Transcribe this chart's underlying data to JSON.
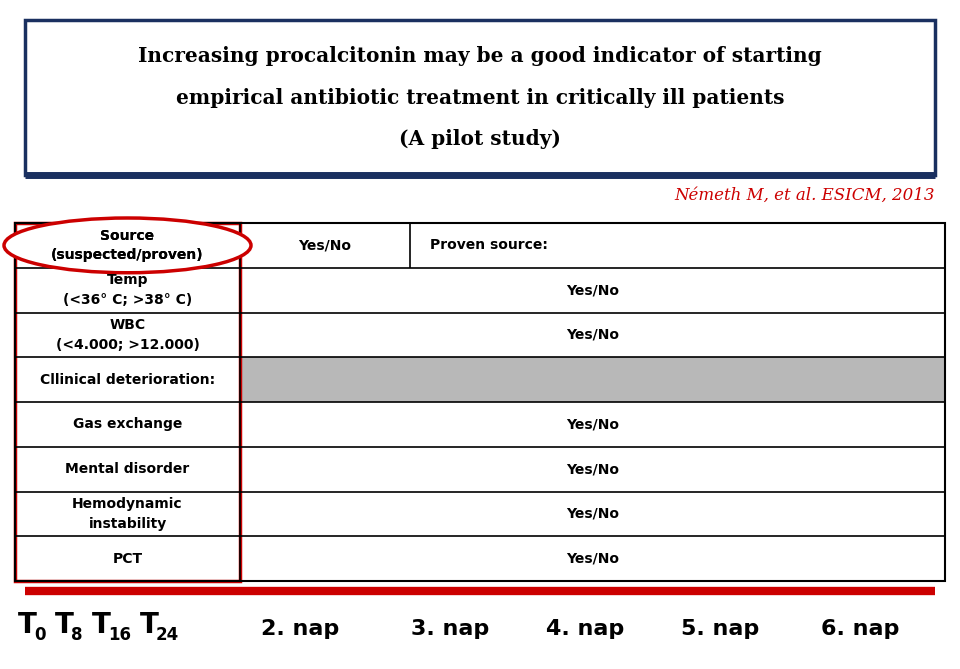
{
  "title_line1": "Increasing procalcitonin may be a good indicator of starting",
  "title_line2": "empirical antibiotic treatment in critically ill patients",
  "title_line3": "(A pilot study)",
  "subtitle": "Németh M, et al. ESICM, 2013",
  "subtitle_color": "#cc0000",
  "dark_blue": "#1a3060",
  "red_color": "#cc0000",
  "gray_row_color": "#b8b8b8",
  "table_rows": [
    {
      "label": "Source\n(suspected/proven)",
      "col2": "Yes/No",
      "col3": "Proven source:",
      "gray": false,
      "ellipse": true,
      "col3_left": true
    },
    {
      "label": "Temp\n(<36° C; >38° C)",
      "col2": "",
      "col3": "Yes/No",
      "gray": false,
      "ellipse": false,
      "col3_left": false
    },
    {
      "label": "WBC\n(<4.000; >12.000)",
      "col2": "",
      "col3": "Yes/No",
      "gray": false,
      "ellipse": false,
      "col3_left": false
    },
    {
      "label": "Cllinical deterioration:",
      "col2": "",
      "col3": "",
      "gray": true,
      "ellipse": false,
      "col3_left": false
    },
    {
      "label": "Gas exchange",
      "col2": "",
      "col3": "Yes/No",
      "gray": false,
      "ellipse": false,
      "col3_left": false
    },
    {
      "label": "Mental disorder",
      "col2": "",
      "col3": "Yes/No",
      "gray": false,
      "ellipse": false,
      "col3_left": false
    },
    {
      "label": "Hemodynamic\ninstability",
      "col2": "",
      "col3": "Yes/No",
      "gray": false,
      "ellipse": false,
      "col3_left": false
    },
    {
      "label": "PCT",
      "col2": "",
      "col3": "Yes/No",
      "gray": false,
      "ellipse": false,
      "col3_left": false
    }
  ],
  "t_labels": [
    [
      "T",
      "0"
    ],
    [
      "T",
      "8"
    ],
    [
      "T",
      "16"
    ],
    [
      "T",
      "24"
    ]
  ],
  "nap_labels": [
    "2. nap",
    "3. nap",
    "4. nap",
    "5. nap",
    "6. nap"
  ]
}
